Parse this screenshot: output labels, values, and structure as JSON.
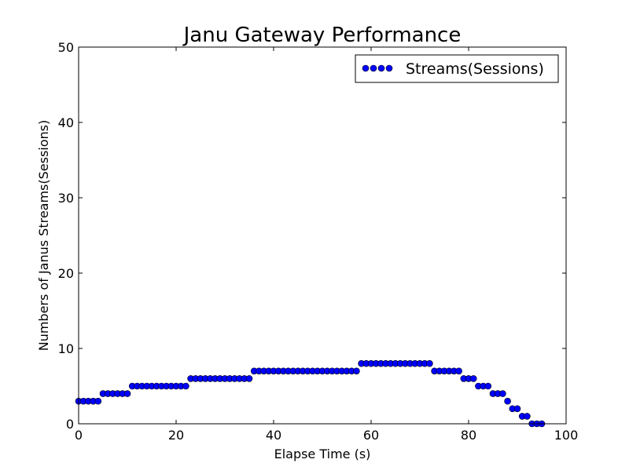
{
  "chart_data": {
    "type": "line",
    "title": "Janu Gateway Performance",
    "xlabel": "Elapse Time (s)",
    "ylabel": "Numbers of Janus Streams(Sessions)",
    "xlim": [
      0,
      100
    ],
    "ylim": [
      0,
      50
    ],
    "xticks": [
      "0",
      "20",
      "40",
      "60",
      "80",
      "100"
    ],
    "yticks": [
      "0",
      "10",
      "20",
      "30",
      "40",
      "50"
    ],
    "grid": false,
    "legend_position": "top-right",
    "series": [
      {
        "name": "Streams(Sessions)",
        "color": "#0000ff",
        "marker": "circle",
        "x": [
          0,
          1,
          2,
          3,
          4,
          5,
          6,
          7,
          8,
          9,
          10,
          11,
          12,
          13,
          14,
          15,
          16,
          17,
          18,
          19,
          20,
          21,
          22,
          23,
          24,
          25,
          26,
          27,
          28,
          29,
          30,
          31,
          32,
          33,
          34,
          35,
          36,
          37,
          38,
          39,
          40,
          41,
          42,
          43,
          44,
          45,
          46,
          47,
          48,
          49,
          50,
          51,
          52,
          53,
          54,
          55,
          56,
          57,
          58,
          59,
          60,
          61,
          62,
          63,
          64,
          65,
          66,
          67,
          68,
          69,
          70,
          71,
          72,
          73,
          74,
          75,
          76,
          77,
          78,
          79,
          80,
          81,
          82,
          83,
          84,
          85,
          86,
          87,
          88,
          89,
          90,
          91,
          92,
          93,
          94,
          95
        ],
        "y": [
          3,
          3,
          3,
          3,
          3,
          4,
          4,
          4,
          4,
          4,
          4,
          5,
          5,
          5,
          5,
          5,
          5,
          5,
          5,
          5,
          5,
          5,
          5,
          6,
          6,
          6,
          6,
          6,
          6,
          6,
          6,
          6,
          6,
          6,
          6,
          6,
          7,
          7,
          7,
          7,
          7,
          7,
          7,
          7,
          7,
          7,
          7,
          7,
          7,
          7,
          7,
          7,
          7,
          7,
          7,
          7,
          7,
          7,
          8,
          8,
          8,
          8,
          8,
          8,
          8,
          8,
          8,
          8,
          8,
          8,
          8,
          8,
          8,
          7,
          7,
          7,
          7,
          7,
          7,
          6,
          6,
          6,
          5,
          5,
          5,
          4,
          4,
          4,
          3,
          2,
          2,
          1,
          1,
          0,
          0,
          0
        ]
      }
    ]
  }
}
